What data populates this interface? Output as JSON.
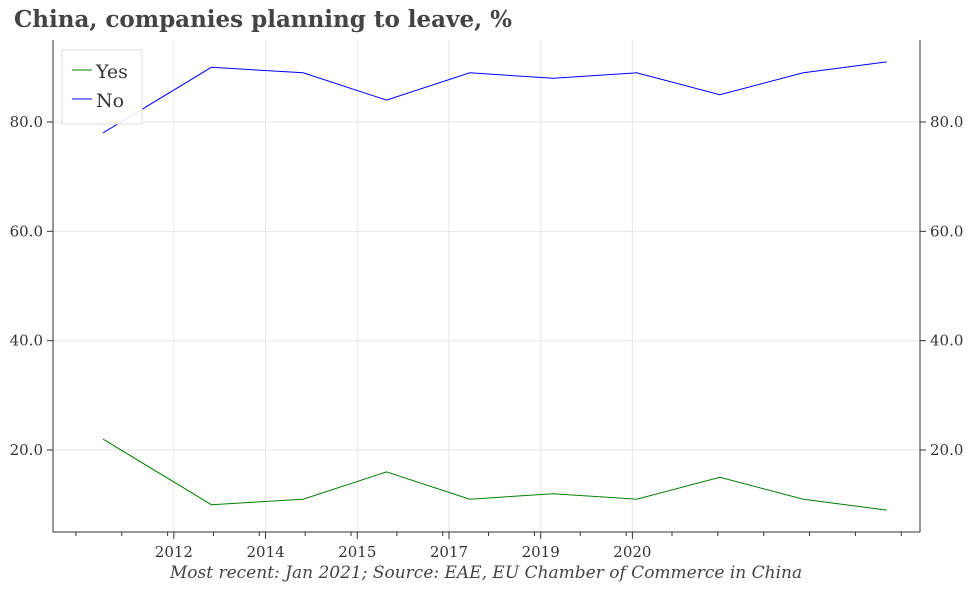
{
  "title": "China, companies planning to leave, %",
  "footer": "Most recent: Jan 2021; Source: EAE, EU Chamber of Commerce in China",
  "colors": {
    "yes": "#008000",
    "no": "#0000ff",
    "grid": "#e6e6e6",
    "axis": "#333333"
  },
  "chart_data": {
    "type": "line",
    "x": [
      2010.6,
      2011.9,
      2013.0,
      2014.0,
      2015.0,
      2016.0,
      2017.0,
      2018.0,
      2019.0,
      2020.0
    ],
    "series": [
      {
        "name": "Yes",
        "values": [
          22,
          10,
          11,
          16,
          11,
          12,
          11,
          15,
          11,
          9
        ]
      },
      {
        "name": "No",
        "values": [
          78,
          90,
          89,
          84,
          89,
          88,
          89,
          85,
          89,
          91
        ]
      }
    ],
    "xlim": [
      2010.0,
      2020.4
    ],
    "ylim": [
      5,
      95
    ],
    "x_ticks": [
      {
        "value": 2011.45,
        "label": "2012"
      },
      {
        "value": 2012.55,
        "label": "2014"
      },
      {
        "value": 2013.65,
        "label": "2015"
      },
      {
        "value": 2014.75,
        "label": "2017"
      },
      {
        "value": 2015.85,
        "label": "2019"
      },
      {
        "value": 2016.95,
        "label": "2020"
      }
    ],
    "y_ticks": [
      20,
      40,
      60,
      80
    ],
    "y_tick_labels": [
      "20.0",
      "40.0",
      "60.0",
      "80.0"
    ],
    "grid": true,
    "legend": "top-left"
  }
}
